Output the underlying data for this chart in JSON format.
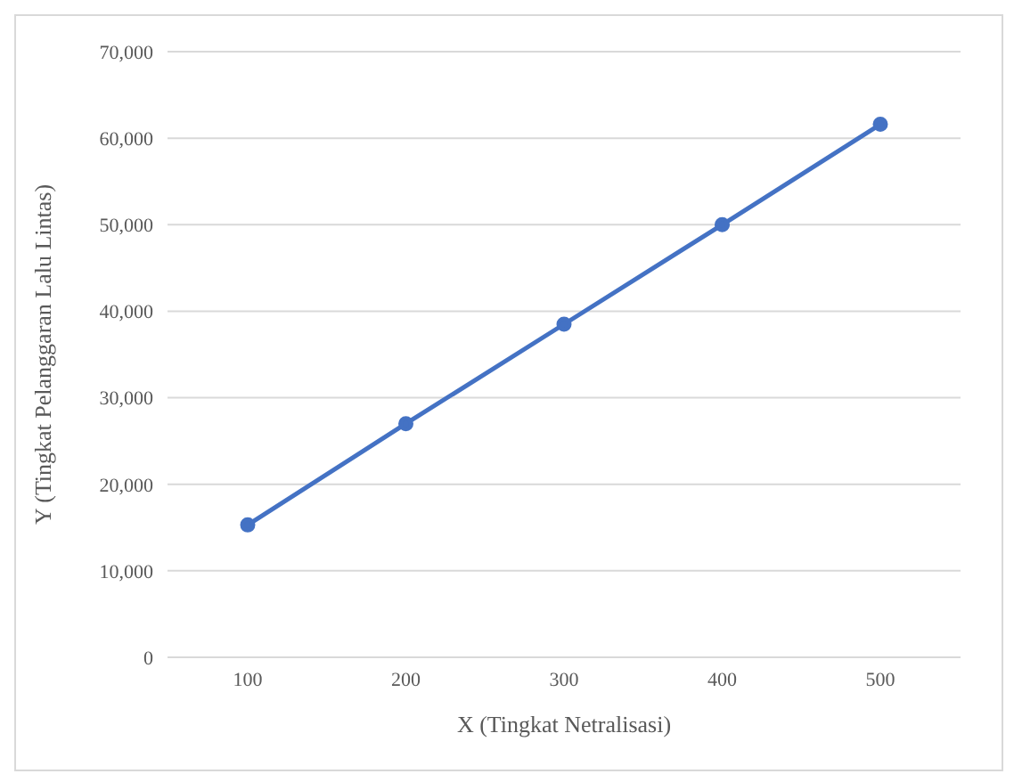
{
  "chart_data": {
    "type": "line",
    "xlabel": "X (Tingkat Netralisasi)",
    "ylabel": "Y (Tingkat Pelanggaran Lalu Lintas)",
    "categories": [
      "100",
      "200",
      "300",
      "400",
      "500"
    ],
    "series": [
      {
        "color": "#4472c4",
        "values": [
          15300,
          27000,
          38500,
          50000,
          61600
        ]
      }
    ],
    "ylim": [
      0,
      70000
    ],
    "yticks": [
      {
        "value": 0,
        "label": "0"
      },
      {
        "value": 10000,
        "label": "10,000"
      },
      {
        "value": 20000,
        "label": "20,000"
      },
      {
        "value": 30000,
        "label": "30,000"
      },
      {
        "value": 40000,
        "label": "40,000"
      },
      {
        "value": 50000,
        "label": "50,000"
      },
      {
        "value": 60000,
        "label": "60,000"
      },
      {
        "value": 70000,
        "label": "70,000"
      }
    ],
    "grid": "y",
    "marker": "circle",
    "line_style": "solid"
  }
}
